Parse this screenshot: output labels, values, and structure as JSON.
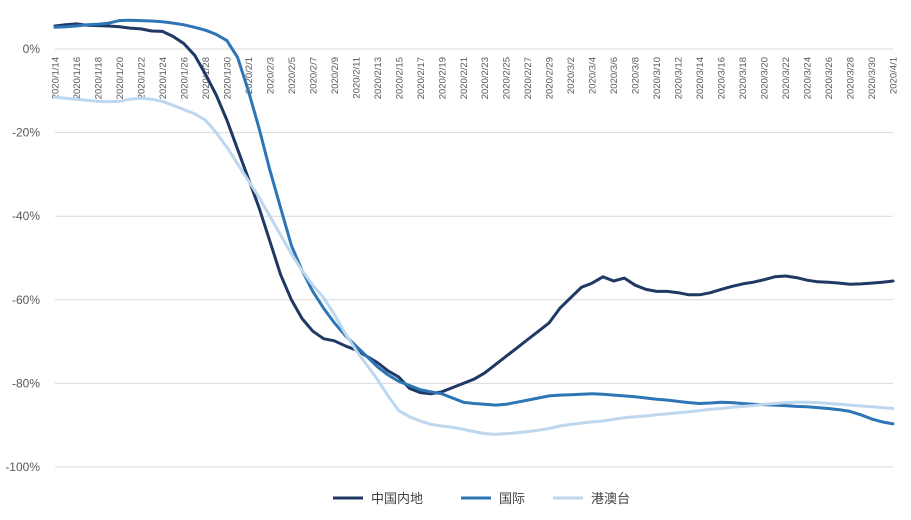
{
  "chart_data": {
    "type": "line",
    "title": "",
    "xlabel": "",
    "ylabel": "",
    "ylim": [
      -100,
      0
    ],
    "yticks": [
      0,
      -20,
      -40,
      -60,
      -80,
      -100
    ],
    "ytick_labels": [
      "0%",
      "-20%",
      "-40%",
      "-60%",
      "-80%",
      "-100%"
    ],
    "x": [
      "2020/1/14",
      "2020/1/15",
      "2020/1/16",
      "2020/1/17",
      "2020/1/18",
      "2020/1/19",
      "2020/1/20",
      "2020/1/21",
      "2020/1/22",
      "2020/1/23",
      "2020/1/24",
      "2020/1/25",
      "2020/1/26",
      "2020/1/27",
      "2020/1/28",
      "2020/1/29",
      "2020/1/30",
      "2020/1/31",
      "2020/2/1",
      "2020/2/2",
      "2020/2/3",
      "2020/2/4",
      "2020/2/5",
      "2020/2/6",
      "2020/2/7",
      "2020/2/8",
      "2020/2/9",
      "2020/2/10",
      "2020/2/11",
      "2020/2/12",
      "2020/2/13",
      "2020/2/14",
      "2020/2/15",
      "2020/2/16",
      "2020/2/17",
      "2020/2/18",
      "2020/2/19",
      "2020/2/20",
      "2020/2/21",
      "2020/2/22",
      "2020/2/23",
      "2020/2/24",
      "2020/2/25",
      "2020/2/26",
      "2020/2/27",
      "2020/2/28",
      "2020/2/29",
      "2020/3/1",
      "2020/3/2",
      "2020/3/3",
      "2020/3/4",
      "2020/3/5",
      "2020/3/6",
      "2020/3/7",
      "2020/3/8",
      "2020/3/9",
      "2020/3/10",
      "2020/3/11",
      "2020/3/12",
      "2020/3/13",
      "2020/3/14",
      "2020/3/15",
      "2020/3/16",
      "2020/3/17",
      "2020/3/18",
      "2020/3/19",
      "2020/3/20",
      "2020/3/21",
      "2020/3/22",
      "2020/3/23",
      "2020/3/24",
      "2020/3/25",
      "2020/3/26",
      "2020/3/27",
      "2020/3/28",
      "2020/3/29",
      "2020/3/30",
      "2020/3/31",
      "2020/4/1"
    ],
    "xtick_labels": [
      "2020/1/14",
      "2020/1/16",
      "2020/1/18",
      "2020/1/20",
      "2020/1/22",
      "2020/1/24",
      "2020/1/26",
      "2020/1/28",
      "2020/1/30",
      "2020/2/1",
      "2020/2/3",
      "2020/2/5",
      "2020/2/7",
      "2020/2/9",
      "2020/2/11",
      "2020/2/13",
      "2020/2/15",
      "2020/2/17",
      "2020/2/19",
      "2020/2/21",
      "2020/2/23",
      "2020/2/25",
      "2020/2/27",
      "2020/2/29",
      "2020/3/2",
      "2020/3/4",
      "2020/3/6",
      "2020/3/8",
      "2020/3/10",
      "2020/3/12",
      "2020/3/14",
      "2020/3/16",
      "2020/3/18",
      "2020/3/20",
      "2020/3/22",
      "2020/3/24",
      "2020/3/26",
      "2020/3/28",
      "2020/3/30",
      "2020/4/1"
    ],
    "grid": true,
    "legend_position": "bottom",
    "series": [
      {
        "name": "中国内地",
        "color": "#1f3864",
        "values": [
          5.5,
          5.8,
          6.0,
          5.7,
          5.6,
          5.5,
          5.3,
          5.0,
          4.8,
          4.3,
          4.2,
          3.0,
          1.3,
          -1.5,
          -6.0,
          -11.0,
          -17.0,
          -24.0,
          -31.0,
          -38.0,
          -46.0,
          -54.0,
          -60.0,
          -64.5,
          -67.5,
          -69.3,
          -69.8,
          -71.0,
          -72.0,
          -73.5,
          -75.0,
          -77.0,
          -78.5,
          -81.2,
          -82.2,
          -82.5,
          -82.0,
          -81.0,
          -80.0,
          -79.0,
          -77.5,
          -75.5,
          -73.5,
          -71.5,
          -69.5,
          -67.5,
          -65.5,
          -62.0,
          -59.5,
          -57.0,
          -56.0,
          -54.5,
          -55.5,
          -54.8,
          -56.5,
          -57.5,
          -58.0,
          -58.0,
          -58.3,
          -58.8,
          -58.8,
          -58.3,
          -57.5,
          -56.8,
          -56.2,
          -55.8,
          -55.2,
          -54.5,
          -54.3,
          -54.7,
          -55.3,
          -55.7,
          -55.8,
          -56.0,
          -56.3,
          -56.2,
          -56.0,
          -55.8,
          -55.5
        ]
      },
      {
        "name": "国际",
        "color": "#2e75b6",
        "values": [
          5.2,
          5.3,
          5.5,
          5.8,
          5.9,
          6.2,
          6.8,
          6.9,
          6.8,
          6.7,
          6.5,
          6.2,
          5.8,
          5.2,
          4.5,
          3.5,
          2.0,
          -2.0,
          -10.0,
          -19.0,
          -29.0,
          -38.0,
          -47.0,
          -53.0,
          -58.0,
          -62.0,
          -65.5,
          -68.5,
          -71.0,
          -73.5,
          -76.0,
          -78.0,
          -79.5,
          -80.5,
          -81.5,
          -82.0,
          -82.5,
          -83.5,
          -84.5,
          -84.8,
          -85.0,
          -85.2,
          -85.0,
          -84.5,
          -84.0,
          -83.5,
          -83.0,
          -82.8,
          -82.7,
          -82.6,
          -82.5,
          -82.6,
          -82.8,
          -83.0,
          -83.2,
          -83.5,
          -83.8,
          -84.0,
          -84.3,
          -84.6,
          -84.8,
          -84.7,
          -84.5,
          -84.6,
          -84.8,
          -85.0,
          -85.1,
          -85.2,
          -85.3,
          -85.5,
          -85.6,
          -85.8,
          -86.0,
          -86.3,
          -86.7,
          -87.5,
          -88.5,
          -89.2,
          -89.7
        ]
      },
      {
        "name": "港澳台",
        "color": "#bdd7ee",
        "values": [
          -11.5,
          -11.8,
          -12.0,
          -12.3,
          -12.5,
          -12.6,
          -12.5,
          -12.0,
          -11.8,
          -12.0,
          -12.5,
          -13.5,
          -14.5,
          -15.5,
          -17.0,
          -20.0,
          -23.5,
          -27.5,
          -31.5,
          -35.5,
          -40.0,
          -44.5,
          -49.0,
          -53.0,
          -56.5,
          -59.5,
          -63.5,
          -68.0,
          -72.0,
          -75.5,
          -79.0,
          -83.0,
          -86.5,
          -88.0,
          -89.0,
          -89.8,
          -90.2,
          -90.5,
          -91.0,
          -91.5,
          -92.0,
          -92.2,
          -92.0,
          -91.8,
          -91.5,
          -91.2,
          -90.8,
          -90.2,
          -89.8,
          -89.5,
          -89.2,
          -89.0,
          -88.6,
          -88.2,
          -88.0,
          -87.8,
          -87.5,
          -87.3,
          -87.0,
          -86.8,
          -86.5,
          -86.2,
          -86.0,
          -85.7,
          -85.5,
          -85.3,
          -85.0,
          -84.8,
          -84.6,
          -84.5,
          -84.5,
          -84.6,
          -84.8,
          -85.0,
          -85.2,
          -85.4,
          -85.6,
          -85.8,
          -86.0
        ]
      }
    ]
  }
}
